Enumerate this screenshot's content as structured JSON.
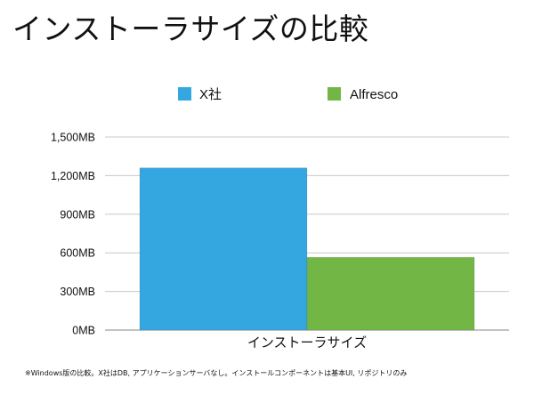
{
  "slide": {
    "title": "インストーラサイズの比較",
    "footnote": "※Windows版の比較。X社はDB, アプリケーションサーバなし。インストールコンポーネントは基本UI, リポジトリのみ"
  },
  "chart_data": {
    "type": "bar",
    "categories": [
      "インストーラサイズ"
    ],
    "series": [
      {
        "name": "X社",
        "values": [
          1260
        ],
        "color": "#35a7e0"
      },
      {
        "name": "Alfresco",
        "values": [
          565
        ],
        "color": "#72b646"
      }
    ],
    "xlabel": "",
    "ylabel": "",
    "ylim": [
      0,
      1500
    ],
    "yticks": [
      {
        "value": 0,
        "label": "0MB"
      },
      {
        "value": 300,
        "label": "300MB"
      },
      {
        "value": 600,
        "label": "600MB"
      },
      {
        "value": 900,
        "label": "900MB"
      },
      {
        "value": 1200,
        "label": "1,200MB"
      },
      {
        "value": 1500,
        "label": "1,500MB"
      }
    ],
    "grid": true,
    "legend": "top"
  }
}
